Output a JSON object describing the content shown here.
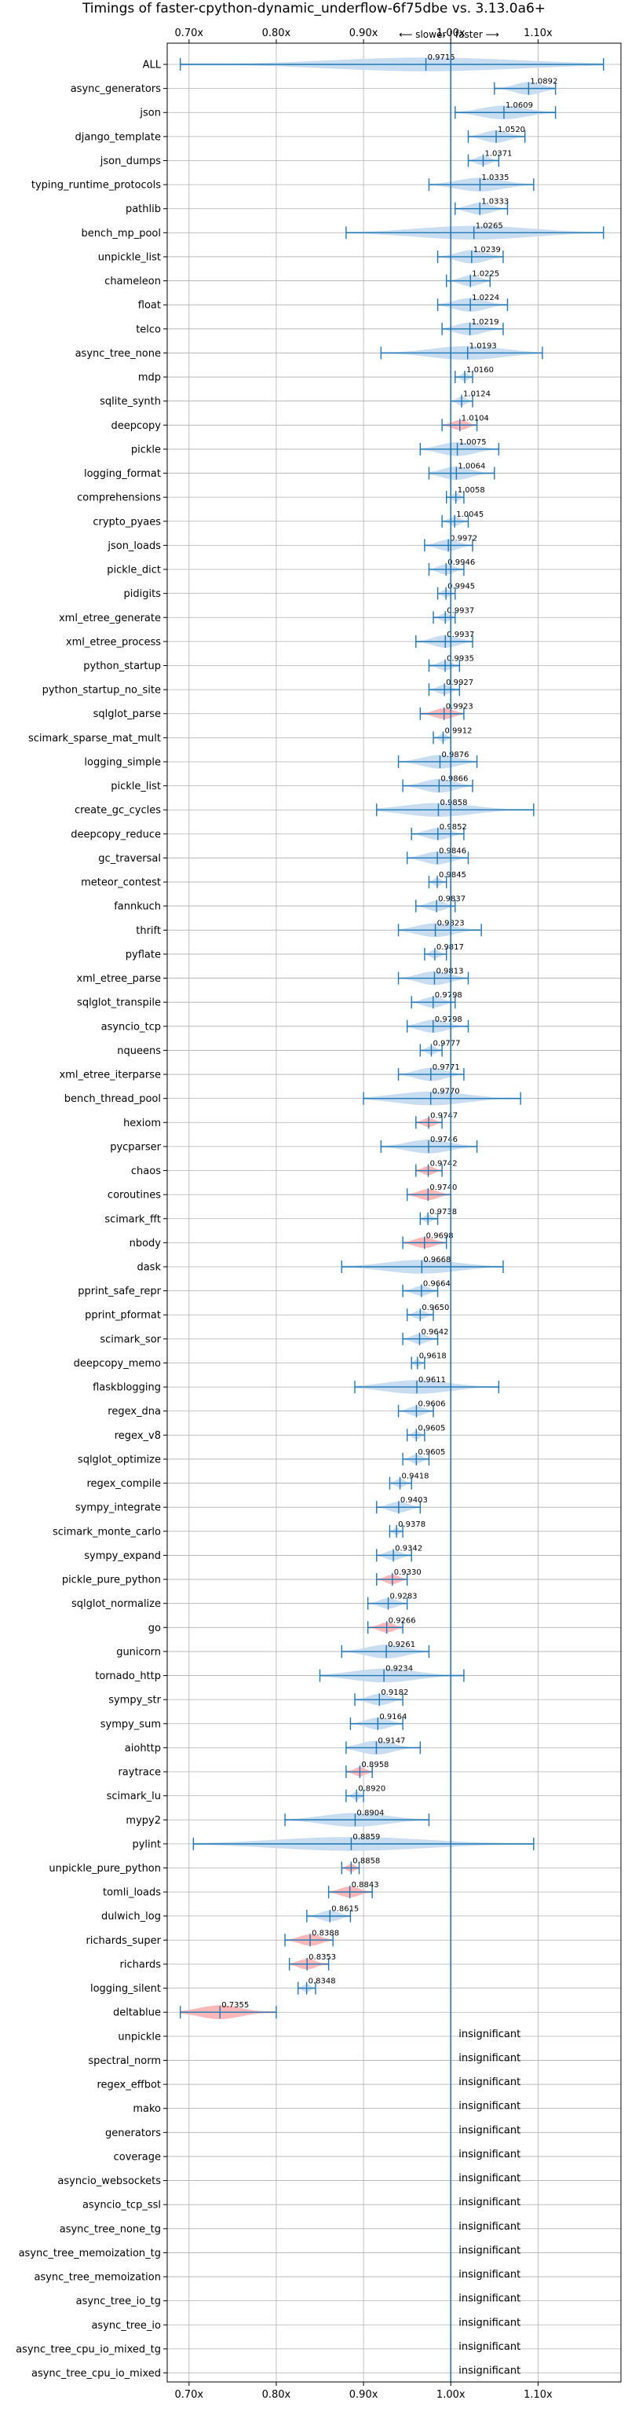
{
  "chart_data": {
    "type": "violin",
    "title": "Timings of faster-cpython-dynamic_underflow-6f75dbe vs. 3.13.0a6+",
    "direction_note": "⟵ slower  |  faster ⟶",
    "xlim": [
      0.675,
      1.195
    ],
    "xticks": [
      0.7,
      0.8,
      0.9,
      1.0,
      1.1
    ],
    "xtick_labels": [
      "0.70x",
      "0.80x",
      "0.90x",
      "1.00x",
      "1.10x"
    ],
    "grid": true,
    "reference_line": 1.0,
    "colors": {
      "faster": "#1f77b4",
      "faster_fill": "#c6dbef",
      "slower_fill": "#ffb3b3",
      "slower_edge": "#1f77b4",
      "line": "#1f77b4"
    },
    "benchmarks": [
      {
        "name": "ALL",
        "value": 0.9715,
        "low": 0.69,
        "high": 1.175,
        "significant": true
      },
      {
        "name": "async_generators",
        "value": 1.0892,
        "low": 1.05,
        "high": 1.12,
        "significant": true
      },
      {
        "name": "json",
        "value": 1.0609,
        "low": 1.005,
        "high": 1.12,
        "significant": true
      },
      {
        "name": "django_template",
        "value": 1.052,
        "low": 1.02,
        "high": 1.085,
        "significant": true
      },
      {
        "name": "json_dumps",
        "value": 1.0371,
        "low": 1.02,
        "high": 1.055,
        "significant": true
      },
      {
        "name": "typing_runtime_protocols",
        "value": 1.0335,
        "low": 0.975,
        "high": 1.095,
        "significant": true
      },
      {
        "name": "pathlib",
        "value": 1.0333,
        "low": 1.005,
        "high": 1.065,
        "significant": true
      },
      {
        "name": "bench_mp_pool",
        "value": 1.0265,
        "low": 0.88,
        "high": 1.175,
        "significant": true
      },
      {
        "name": "unpickle_list",
        "value": 1.0239,
        "low": 0.985,
        "high": 1.06,
        "significant": true
      },
      {
        "name": "chameleon",
        "value": 1.0225,
        "low": 0.995,
        "high": 1.045,
        "significant": true
      },
      {
        "name": "float",
        "value": 1.0224,
        "low": 0.985,
        "high": 1.065,
        "significant": true
      },
      {
        "name": "telco",
        "value": 1.0219,
        "low": 0.99,
        "high": 1.06,
        "significant": true
      },
      {
        "name": "async_tree_none",
        "value": 1.0193,
        "low": 0.92,
        "high": 1.105,
        "significant": true
      },
      {
        "name": "mdp",
        "value": 1.016,
        "low": 1.005,
        "high": 1.025,
        "significant": true
      },
      {
        "name": "sqlite_synth",
        "value": 1.0124,
        "low": 1.0,
        "high": 1.025,
        "significant": true
      },
      {
        "name": "deepcopy",
        "value": 1.0104,
        "low": 0.99,
        "high": 1.03,
        "significant": false
      },
      {
        "name": "pickle",
        "value": 1.0075,
        "low": 0.965,
        "high": 1.055,
        "significant": true
      },
      {
        "name": "logging_format",
        "value": 1.0064,
        "low": 0.975,
        "high": 1.05,
        "significant": true
      },
      {
        "name": "comprehensions",
        "value": 1.0058,
        "low": 0.995,
        "high": 1.015,
        "significant": true
      },
      {
        "name": "crypto_pyaes",
        "value": 1.0045,
        "low": 0.99,
        "high": 1.02,
        "significant": true
      },
      {
        "name": "json_loads",
        "value": 0.9972,
        "low": 0.97,
        "high": 1.025,
        "significant": true
      },
      {
        "name": "pickle_dict",
        "value": 0.9946,
        "low": 0.975,
        "high": 1.015,
        "significant": true
      },
      {
        "name": "pidigits",
        "value": 0.9945,
        "low": 0.985,
        "high": 1.005,
        "significant": true
      },
      {
        "name": "xml_etree_generate",
        "value": 0.9937,
        "low": 0.98,
        "high": 1.005,
        "significant": true
      },
      {
        "name": "xml_etree_process",
        "value": 0.9937,
        "low": 0.96,
        "high": 1.025,
        "significant": true
      },
      {
        "name": "python_startup",
        "value": 0.9935,
        "low": 0.975,
        "high": 1.01,
        "significant": true
      },
      {
        "name": "python_startup_no_site",
        "value": 0.9927,
        "low": 0.975,
        "high": 1.01,
        "significant": true
      },
      {
        "name": "sqlglot_parse",
        "value": 0.9923,
        "low": 0.965,
        "high": 1.015,
        "significant": false
      },
      {
        "name": "scimark_sparse_mat_mult",
        "value": 0.9912,
        "low": 0.98,
        "high": 1.0,
        "significant": true
      },
      {
        "name": "logging_simple",
        "value": 0.9876,
        "low": 0.94,
        "high": 1.03,
        "significant": true
      },
      {
        "name": "pickle_list",
        "value": 0.9866,
        "low": 0.945,
        "high": 1.025,
        "significant": true
      },
      {
        "name": "create_gc_cycles",
        "value": 0.9858,
        "low": 0.915,
        "high": 1.095,
        "significant": true
      },
      {
        "name": "deepcopy_reduce",
        "value": 0.9852,
        "low": 0.955,
        "high": 1.015,
        "significant": true
      },
      {
        "name": "gc_traversal",
        "value": 0.9846,
        "low": 0.95,
        "high": 1.02,
        "significant": true
      },
      {
        "name": "meteor_contest",
        "value": 0.9845,
        "low": 0.975,
        "high": 0.995,
        "significant": true
      },
      {
        "name": "fannkuch",
        "value": 0.9837,
        "low": 0.96,
        "high": 1.005,
        "significant": true
      },
      {
        "name": "thrift",
        "value": 0.9823,
        "low": 0.94,
        "high": 1.035,
        "significant": true
      },
      {
        "name": "pyflate",
        "value": 0.9817,
        "low": 0.97,
        "high": 0.995,
        "significant": true
      },
      {
        "name": "xml_etree_parse",
        "value": 0.9813,
        "low": 0.94,
        "high": 1.02,
        "significant": true
      },
      {
        "name": "sqlglot_transpile",
        "value": 0.9798,
        "low": 0.955,
        "high": 1.005,
        "significant": true
      },
      {
        "name": "asyncio_tcp",
        "value": 0.9798,
        "low": 0.95,
        "high": 1.02,
        "significant": true
      },
      {
        "name": "nqueens",
        "value": 0.9777,
        "low": 0.965,
        "high": 0.99,
        "significant": true
      },
      {
        "name": "xml_etree_iterparse",
        "value": 0.9771,
        "low": 0.94,
        "high": 1.015,
        "significant": true
      },
      {
        "name": "bench_thread_pool",
        "value": 0.977,
        "low": 0.9,
        "high": 1.08,
        "significant": true
      },
      {
        "name": "hexiom",
        "value": 0.9747,
        "low": 0.96,
        "high": 0.99,
        "significant": false
      },
      {
        "name": "pycparser",
        "value": 0.9746,
        "low": 0.92,
        "high": 1.03,
        "significant": true
      },
      {
        "name": "chaos",
        "value": 0.9742,
        "low": 0.96,
        "high": 0.99,
        "significant": false
      },
      {
        "name": "coroutines",
        "value": 0.974,
        "low": 0.95,
        "high": 1.0,
        "significant": false
      },
      {
        "name": "scimark_fft",
        "value": 0.9738,
        "low": 0.965,
        "high": 0.985,
        "significant": true
      },
      {
        "name": "nbody",
        "value": 0.9698,
        "low": 0.945,
        "high": 0.995,
        "significant": false
      },
      {
        "name": "dask",
        "value": 0.9668,
        "low": 0.875,
        "high": 1.06,
        "significant": true
      },
      {
        "name": "pprint_safe_repr",
        "value": 0.9664,
        "low": 0.945,
        "high": 0.985,
        "significant": true
      },
      {
        "name": "pprint_pformat",
        "value": 0.965,
        "low": 0.95,
        "high": 0.98,
        "significant": true
      },
      {
        "name": "scimark_sor",
        "value": 0.9642,
        "low": 0.945,
        "high": 0.985,
        "significant": true
      },
      {
        "name": "deepcopy_memo",
        "value": 0.9618,
        "low": 0.955,
        "high": 0.97,
        "significant": true
      },
      {
        "name": "flaskblogging",
        "value": 0.9611,
        "low": 0.89,
        "high": 1.055,
        "significant": true
      },
      {
        "name": "regex_dna",
        "value": 0.9606,
        "low": 0.94,
        "high": 0.98,
        "significant": true
      },
      {
        "name": "regex_v8",
        "value": 0.9605,
        "low": 0.95,
        "high": 0.97,
        "significant": true
      },
      {
        "name": "sqlglot_optimize",
        "value": 0.9605,
        "low": 0.945,
        "high": 0.975,
        "significant": true
      },
      {
        "name": "regex_compile",
        "value": 0.9418,
        "low": 0.93,
        "high": 0.955,
        "significant": true
      },
      {
        "name": "sympy_integrate",
        "value": 0.9403,
        "low": 0.915,
        "high": 0.965,
        "significant": true
      },
      {
        "name": "scimark_monte_carlo",
        "value": 0.9378,
        "low": 0.93,
        "high": 0.945,
        "significant": true
      },
      {
        "name": "sympy_expand",
        "value": 0.9342,
        "low": 0.915,
        "high": 0.955,
        "significant": true
      },
      {
        "name": "pickle_pure_python",
        "value": 0.933,
        "low": 0.915,
        "high": 0.95,
        "significant": false
      },
      {
        "name": "sqlglot_normalize",
        "value": 0.9283,
        "low": 0.905,
        "high": 0.95,
        "significant": true
      },
      {
        "name": "go",
        "value": 0.9266,
        "low": 0.905,
        "high": 0.945,
        "significant": false
      },
      {
        "name": "gunicorn",
        "value": 0.9261,
        "low": 0.875,
        "high": 0.975,
        "significant": true
      },
      {
        "name": "tornado_http",
        "value": 0.9234,
        "low": 0.85,
        "high": 1.015,
        "significant": true
      },
      {
        "name": "sympy_str",
        "value": 0.9182,
        "low": 0.89,
        "high": 0.945,
        "significant": true
      },
      {
        "name": "sympy_sum",
        "value": 0.9164,
        "low": 0.885,
        "high": 0.945,
        "significant": true
      },
      {
        "name": "aiohttp",
        "value": 0.9147,
        "low": 0.88,
        "high": 0.965,
        "significant": true
      },
      {
        "name": "raytrace",
        "value": 0.8958,
        "low": 0.88,
        "high": 0.91,
        "significant": false
      },
      {
        "name": "scimark_lu",
        "value": 0.892,
        "low": 0.88,
        "high": 0.9,
        "significant": true
      },
      {
        "name": "mypy2",
        "value": 0.8904,
        "low": 0.81,
        "high": 0.975,
        "significant": true
      },
      {
        "name": "pylint",
        "value": 0.8859,
        "low": 0.705,
        "high": 1.095,
        "significant": true
      },
      {
        "name": "unpickle_pure_python",
        "value": 0.8858,
        "low": 0.875,
        "high": 0.895,
        "significant": false
      },
      {
        "name": "tomli_loads",
        "value": 0.8843,
        "low": 0.86,
        "high": 0.91,
        "significant": false
      },
      {
        "name": "dulwich_log",
        "value": 0.8615,
        "low": 0.835,
        "high": 0.885,
        "significant": true
      },
      {
        "name": "richards_super",
        "value": 0.8388,
        "low": 0.81,
        "high": 0.865,
        "significant": false
      },
      {
        "name": "richards",
        "value": 0.8353,
        "low": 0.815,
        "high": 0.86,
        "significant": false
      },
      {
        "name": "logging_silent",
        "value": 0.8348,
        "low": 0.825,
        "high": 0.845,
        "significant": true
      },
      {
        "name": "deltablue",
        "value": 0.7355,
        "low": 0.69,
        "high": 0.8,
        "significant": false
      }
    ],
    "insignificant_label": "insignificant",
    "insignificant": [
      "unpickle",
      "spectral_norm",
      "regex_effbot",
      "mako",
      "generators",
      "coverage",
      "asyncio_websockets",
      "asyncio_tcp_ssl",
      "async_tree_none_tg",
      "async_tree_memoization_tg",
      "async_tree_memoization",
      "async_tree_io_tg",
      "async_tree_io",
      "async_tree_cpu_io_mixed_tg",
      "async_tree_cpu_io_mixed"
    ]
  }
}
